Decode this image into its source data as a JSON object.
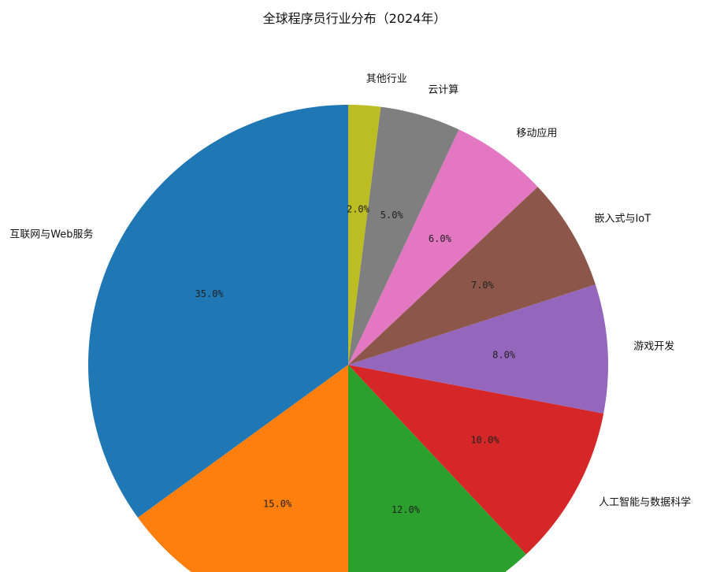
{
  "chart_data": {
    "type": "pie",
    "title": "全球程序员行业分布（2024年）",
    "start_angle_deg": 90,
    "direction": "counterclockwise",
    "slices": [
      {
        "label": "互联网与Web服务",
        "value": 35.0,
        "pct_label": "35.0%",
        "color": "#1f77b4"
      },
      {
        "label": "",
        "value": 15.0,
        "pct_label": "15.0%",
        "color": "#ff7f0e"
      },
      {
        "label": "",
        "value": 12.0,
        "pct_label": "12.0%",
        "color": "#2ca02c"
      },
      {
        "label": "人工智能与数据科学",
        "value": 10.0,
        "pct_label": "10.0%",
        "color": "#d62728"
      },
      {
        "label": "游戏开发",
        "value": 8.0,
        "pct_label": "8.0%",
        "color": "#9467bd"
      },
      {
        "label": "嵌入式与IoT",
        "value": 7.0,
        "pct_label": "7.0%",
        "color": "#8c564b"
      },
      {
        "label": "移动应用",
        "value": 6.0,
        "pct_label": "6.0%",
        "color": "#e377c2"
      },
      {
        "label": "云计算",
        "value": 5.0,
        "pct_label": "5.0%",
        "color": "#7f7f7f"
      },
      {
        "label": "其他行业",
        "value": 2.0,
        "pct_label": "2.0%",
        "color": "#bcbd22"
      }
    ]
  }
}
